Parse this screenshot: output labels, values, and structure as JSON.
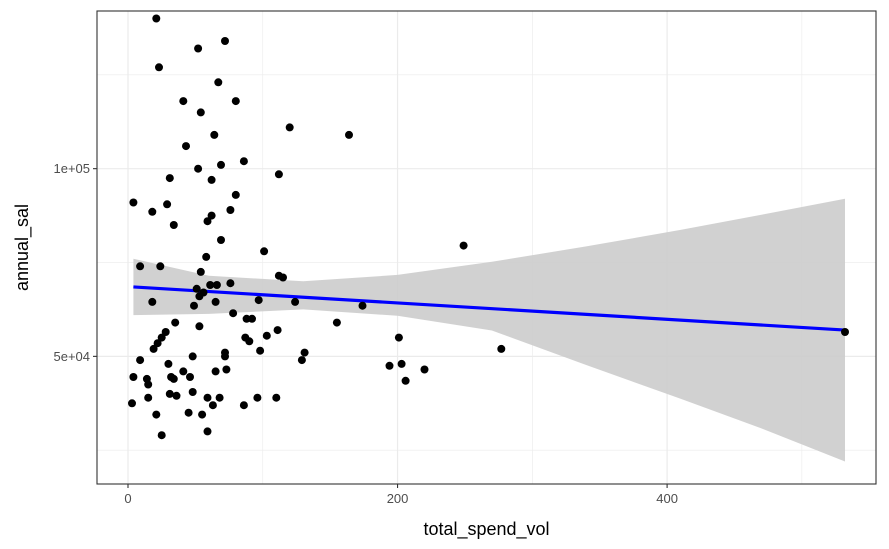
{
  "chart_data": {
    "type": "scatter",
    "xlabel": "total_spend_vol",
    "ylabel": "annual_sal",
    "xlim": [
      -23,
      555
    ],
    "ylim": [
      16000,
      142000
    ],
    "x_ticks": [
      {
        "value": 0,
        "label": "0"
      },
      {
        "value": 200,
        "label": "200"
      },
      {
        "value": 400,
        "label": "400"
      }
    ],
    "y_ticks": [
      {
        "value": 50000,
        "label": "5e+04"
      },
      {
        "value": 100000,
        "label": "1e+05"
      }
    ],
    "grid": true,
    "theme": "black-and-white",
    "points": [
      [
        21,
        140000
      ],
      [
        72,
        134000
      ],
      [
        52,
        132000
      ],
      [
        23,
        127000
      ],
      [
        67,
        123000
      ],
      [
        41,
        118000
      ],
      [
        54,
        115000
      ],
      [
        80,
        118000
      ],
      [
        120,
        111000
      ],
      [
        164,
        109000
      ],
      [
        64,
        109000
      ],
      [
        43,
        106000
      ],
      [
        86,
        102000
      ],
      [
        69,
        101000
      ],
      [
        52,
        100000
      ],
      [
        112,
        98500
      ],
      [
        31,
        97500
      ],
      [
        62,
        97000
      ],
      [
        4,
        91000
      ],
      [
        29,
        90500
      ],
      [
        80,
        93000
      ],
      [
        18,
        88500
      ],
      [
        76,
        89000
      ],
      [
        62,
        87500
      ],
      [
        59,
        86000
      ],
      [
        34,
        85000
      ],
      [
        69,
        81000
      ],
      [
        249,
        79500
      ],
      [
        101,
        78000
      ],
      [
        58,
        76500
      ],
      [
        9,
        74000
      ],
      [
        24,
        74000
      ],
      [
        54,
        72500
      ],
      [
        112,
        71500
      ],
      [
        115,
        71000
      ],
      [
        76,
        69500
      ],
      [
        66,
        69000
      ],
      [
        61,
        69000
      ],
      [
        51,
        68000
      ],
      [
        56,
        67000
      ],
      [
        53,
        66000
      ],
      [
        97,
        65000
      ],
      [
        124,
        64500
      ],
      [
        65,
        64500
      ],
      [
        18,
        64500
      ],
      [
        174,
        63500
      ],
      [
        49,
        63500
      ],
      [
        78,
        61500
      ],
      [
        88,
        60000
      ],
      [
        92,
        60000
      ],
      [
        155,
        59000
      ],
      [
        35,
        59000
      ],
      [
        53,
        58000
      ],
      [
        111,
        57000
      ],
      [
        28,
        56500
      ],
      [
        103,
        55500
      ],
      [
        25,
        55000
      ],
      [
        87,
        55000
      ],
      [
        201,
        55000
      ],
      [
        22,
        53500
      ],
      [
        90,
        54000
      ],
      [
        19,
        52000
      ],
      [
        98,
        51500
      ],
      [
        277,
        52000
      ],
      [
        131,
        51000
      ],
      [
        72,
        51000
      ],
      [
        48,
        50000
      ],
      [
        72,
        50000
      ],
      [
        9,
        49000
      ],
      [
        129,
        49000
      ],
      [
        30,
        48000
      ],
      [
        194,
        47500
      ],
      [
        203,
        48000
      ],
      [
        73,
        46500
      ],
      [
        220,
        46500
      ],
      [
        65,
        46000
      ],
      [
        41,
        46000
      ],
      [
        4,
        44500
      ],
      [
        32,
        44500
      ],
      [
        34,
        44000
      ],
      [
        46,
        44500
      ],
      [
        14,
        44000
      ],
      [
        206,
        43500
      ],
      [
        15,
        42500
      ],
      [
        48,
        40500
      ],
      [
        31,
        40000
      ],
      [
        36,
        39500
      ],
      [
        68,
        39000
      ],
      [
        59,
        39000
      ],
      [
        96,
        39000
      ],
      [
        110,
        39000
      ],
      [
        15,
        39000
      ],
      [
        3,
        37500
      ],
      [
        63,
        37000
      ],
      [
        86,
        37000
      ],
      [
        45,
        35000
      ],
      [
        55,
        34500
      ],
      [
        21,
        34500
      ],
      [
        59,
        30000
      ],
      [
        25,
        29000
      ],
      [
        532,
        56500
      ]
    ],
    "series": [
      {
        "type": "lm_fit",
        "color": "#0000ff",
        "x": [
          4,
          532
        ],
        "y": [
          68500,
          57000
        ]
      }
    ],
    "confidence_band": {
      "color": "#cccccc",
      "x": [
        4,
        60,
        130,
        200,
        270,
        340,
        410,
        470,
        532
      ],
      "upper": [
        76000,
        71500,
        70000,
        71700,
        75200,
        79300,
        83700,
        87700,
        92000
      ],
      "lower": [
        61000,
        61300,
        62500,
        60800,
        56900,
        47700,
        38700,
        30800,
        22000
      ]
    },
    "colors": {
      "point": "#000000",
      "fit_line": "#0000ff",
      "band": "#cccccc",
      "grid": "#ebebeb",
      "panel_border": "#333333",
      "tick_text": "#4d4d4d"
    }
  }
}
